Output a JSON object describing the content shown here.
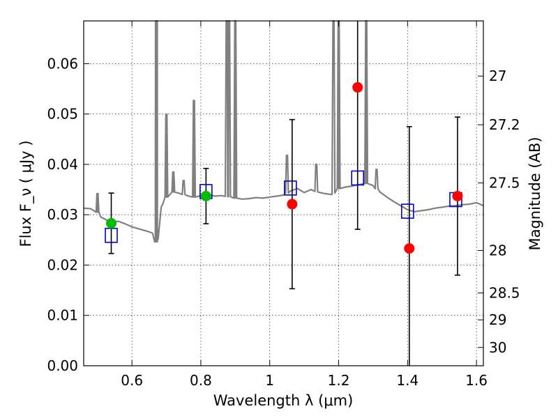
{
  "chart_data": {
    "type": "scatter",
    "xlabel": "Wavelength  λ (μm)",
    "ylabel": "Flux  F_ν  ( μJy )",
    "ylabel_right": "Magnitude (AB)",
    "xlim": [
      0.46,
      1.62
    ],
    "ylim": [
      0.0,
      0.0685
    ],
    "x_ticks": [
      {
        "value": 0.6,
        "label": "0.6"
      },
      {
        "value": 0.8,
        "label": "0.8"
      },
      {
        "value": 1.0,
        "label": "1"
      },
      {
        "value": 1.2,
        "label": "1.2"
      },
      {
        "value": 1.4,
        "label": "1.4"
      },
      {
        "value": 1.6,
        "label": "1.6"
      }
    ],
    "y_ticks": [
      {
        "value": 0.0,
        "label": "0.00"
      },
      {
        "value": 0.01,
        "label": "0.01"
      },
      {
        "value": 0.02,
        "label": "0.02"
      },
      {
        "value": 0.03,
        "label": "0.03"
      },
      {
        "value": 0.04,
        "label": "0.04"
      },
      {
        "value": 0.05,
        "label": "0.05"
      },
      {
        "value": 0.06,
        "label": "0.06"
      }
    ],
    "right_ticks": [
      {
        "value": 27.0,
        "label": "27"
      },
      {
        "value": 27.2,
        "label": "27.2"
      },
      {
        "value": 27.5,
        "label": "27.5"
      },
      {
        "value": 28.0,
        "label": "28"
      },
      {
        "value": 28.5,
        "label": "28.5"
      },
      {
        "value": 29.0,
        "label": "29"
      },
      {
        "value": 30.0,
        "label": "30"
      }
    ],
    "grid": true,
    "colors": {
      "spectrum": "#808080",
      "model": "#0000cc",
      "detected": "#00bb00",
      "undetected": "#ff0000",
      "errorbar": "#000000"
    },
    "observed_points": [
      {
        "x": 0.54,
        "y": 0.0283,
        "err": 0.006,
        "status": "detected"
      },
      {
        "x": 0.815,
        "y": 0.0337,
        "err": 0.0055,
        "status": "detected"
      },
      {
        "x": 1.065,
        "y": 0.0321,
        "err": 0.0168,
        "status": "undetected"
      },
      {
        "x": 1.255,
        "y": 0.0553,
        "err": 0.0282,
        "status": "undetected"
      },
      {
        "x": 1.405,
        "y": 0.0233,
        "err": 0.0242,
        "status": "undetected"
      },
      {
        "x": 1.545,
        "y": 0.0337,
        "err": 0.0157,
        "status": "undetected"
      }
    ],
    "model_points": [
      {
        "x": 0.54,
        "y": 0.0259
      },
      {
        "x": 0.815,
        "y": 0.0346
      },
      {
        "x": 1.06,
        "y": 0.0353
      },
      {
        "x": 1.255,
        "y": 0.0373
      },
      {
        "x": 1.4,
        "y": 0.0307
      },
      {
        "x": 1.54,
        "y": 0.033
      }
    ],
    "spectrum": {
      "x": [
        0.46,
        0.48,
        0.5,
        0.51,
        0.52,
        0.53,
        0.54,
        0.56,
        0.58,
        0.6,
        0.62,
        0.64,
        0.65,
        0.66,
        0.665,
        0.67,
        0.675,
        0.68,
        0.685,
        0.69,
        0.7,
        0.72,
        0.74,
        0.76,
        0.78,
        0.8,
        0.82,
        0.84,
        0.86,
        0.88,
        0.9,
        0.92,
        0.94,
        0.96,
        0.98,
        1.0,
        1.02,
        1.04,
        1.06,
        1.08,
        1.1,
        1.12,
        1.14,
        1.16,
        1.18,
        1.2,
        1.22,
        1.24,
        1.26,
        1.28,
        1.3,
        1.32,
        1.34,
        1.36,
        1.38,
        1.4,
        1.42,
        1.44,
        1.46,
        1.48,
        1.5,
        1.52,
        1.54,
        1.56,
        1.58,
        1.6,
        1.62
      ],
      "y": [
        0.0313,
        0.0312,
        0.0305,
        0.0295,
        0.0292,
        0.0288,
        0.0285,
        0.0287,
        0.0282,
        0.0276,
        0.0272,
        0.0268,
        0.0266,
        0.0263,
        0.0248,
        0.0246,
        0.026,
        0.028,
        0.0315,
        0.0322,
        0.0335,
        0.0345,
        0.0342,
        0.0338,
        0.0335,
        0.0338,
        0.0341,
        0.0337,
        0.0338,
        0.0336,
        0.0333,
        0.0331,
        0.0332,
        0.0334,
        0.0333,
        0.0335,
        0.0337,
        0.0339,
        0.0347,
        0.0352,
        0.0344,
        0.035,
        0.0345,
        0.0342,
        0.034,
        0.0352,
        0.0355,
        0.0357,
        0.036,
        0.0362,
        0.0358,
        0.0345,
        0.0335,
        0.0326,
        0.0318,
        0.031,
        0.0306,
        0.0308,
        0.031,
        0.0313,
        0.0315,
        0.0317,
        0.0318,
        0.032,
        0.0321,
        0.0324,
        0.0318
      ]
    },
    "emission_lines": [
      {
        "x": 0.5,
        "peak": 0.0342
      },
      {
        "x": 0.67,
        "peak": 0.0685
      },
      {
        "x": 0.672,
        "peak": 0.0685
      },
      {
        "x": 0.7,
        "peak": 0.05
      },
      {
        "x": 0.72,
        "peak": 0.0385
      },
      {
        "x": 0.75,
        "peak": 0.0368
      },
      {
        "x": 0.78,
        "peak": 0.0527
      },
      {
        "x": 0.875,
        "peak": 0.0685
      },
      {
        "x": 0.882,
        "peak": 0.0685
      },
      {
        "x": 0.9,
        "peak": 0.0685
      },
      {
        "x": 1.05,
        "peak": 0.0418
      },
      {
        "x": 1.135,
        "peak": 0.04
      },
      {
        "x": 1.185,
        "peak": 0.0685
      },
      {
        "x": 1.2,
        "peak": 0.0685
      },
      {
        "x": 1.28,
        "peak": 0.0685
      },
      {
        "x": 1.31,
        "peak": 0.039
      }
    ]
  }
}
